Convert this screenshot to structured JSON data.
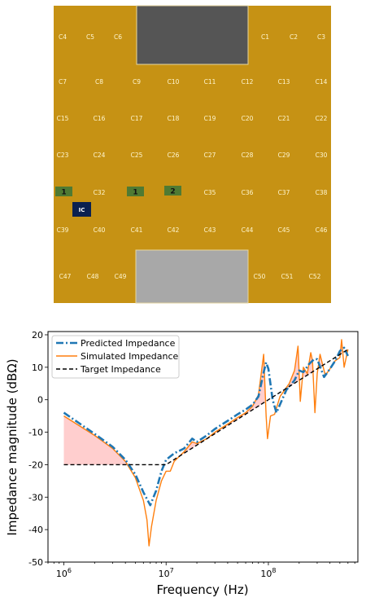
{
  "board": {
    "colors": {
      "board": "#c69214",
      "top_cutout": "#555555",
      "bottom_cutout": "#a8a8a8",
      "port": "#4f7a33",
      "ic": "#0b2150"
    },
    "capacitors": [
      {
        "label": "C4",
        "col": 0,
        "row": 0
      },
      {
        "label": "C5",
        "col": 1,
        "row": 0
      },
      {
        "label": "C6",
        "col": 2,
        "row": 0
      },
      {
        "label": "C1",
        "col": 7,
        "row": 0
      },
      {
        "label": "C2",
        "col": 8,
        "row": 0
      },
      {
        "label": "C3",
        "col": 9,
        "row": 0
      },
      {
        "label": "C7",
        "col": 0,
        "row": 1
      },
      {
        "label": "C8",
        "col": 1,
        "row": 1
      },
      {
        "label": "C9",
        "col": 2,
        "row": 1
      },
      {
        "label": "C10",
        "col": 3,
        "row": 1
      },
      {
        "label": "C11",
        "col": 4,
        "row": 1
      },
      {
        "label": "C12",
        "col": 5,
        "row": 1
      },
      {
        "label": "C13",
        "col": 6,
        "row": 1
      },
      {
        "label": "C14",
        "col": 7,
        "row": 1
      },
      {
        "label": "C15",
        "col": 0,
        "row": 2
      },
      {
        "label": "C16",
        "col": 1,
        "row": 2
      },
      {
        "label": "C17",
        "col": 2,
        "row": 2
      },
      {
        "label": "C18",
        "col": 3,
        "row": 2
      },
      {
        "label": "C19",
        "col": 4,
        "row": 2
      },
      {
        "label": "C20",
        "col": 5,
        "row": 2
      },
      {
        "label": "C21",
        "col": 6,
        "row": 2
      },
      {
        "label": "C22",
        "col": 7,
        "row": 2
      },
      {
        "label": "C23",
        "col": 0,
        "row": 3
      },
      {
        "label": "C24",
        "col": 1,
        "row": 3
      },
      {
        "label": "C25",
        "col": 2,
        "row": 3
      },
      {
        "label": "C26",
        "col": 3,
        "row": 3
      },
      {
        "label": "C27",
        "col": 4,
        "row": 3
      },
      {
        "label": "C28",
        "col": 5,
        "row": 3
      },
      {
        "label": "C29",
        "col": 6,
        "row": 3
      },
      {
        "label": "C30",
        "col": 7,
        "row": 3
      },
      {
        "label": "C32",
        "col": 1,
        "row": 4
      },
      {
        "label": "C35",
        "col": 4,
        "row": 4
      },
      {
        "label": "C36",
        "col": 5,
        "row": 4
      },
      {
        "label": "C37",
        "col": 6,
        "row": 4
      },
      {
        "label": "C38",
        "col": 7,
        "row": 4
      },
      {
        "label": "C39",
        "col": 0,
        "row": 5
      },
      {
        "label": "C40",
        "col": 1,
        "row": 5
      },
      {
        "label": "C41",
        "col": 2,
        "row": 5
      },
      {
        "label": "C42",
        "col": 3,
        "row": 5
      },
      {
        "label": "C43",
        "col": 4,
        "row": 5
      },
      {
        "label": "C44",
        "col": 5,
        "row": 5
      },
      {
        "label": "C45",
        "col": 6,
        "row": 5
      },
      {
        "label": "C46",
        "col": 7,
        "row": 5
      },
      {
        "label": "C47",
        "col": 0,
        "row": 6
      },
      {
        "label": "C48",
        "col": 1,
        "row": 6
      },
      {
        "label": "C49",
        "col": 2,
        "row": 6
      },
      {
        "label": "C50",
        "col": 7,
        "row": 6
      },
      {
        "label": "C51",
        "col": 8,
        "row": 6
      },
      {
        "label": "C52",
        "col": 9,
        "row": 6
      }
    ],
    "ports": [
      "1",
      "1",
      "2"
    ],
    "ic_label": "IC"
  },
  "chart_data": {
    "type": "line",
    "xlabel": "Frequency (Hz)",
    "ylabel": "Impedance magnitude (dBΩ)",
    "xscale": "log",
    "xlim": [
      700000,
      750000000
    ],
    "ylim": [
      -50,
      21
    ],
    "x_ticks": [
      {
        "value": 1000000,
        "base": "10",
        "exp": "6"
      },
      {
        "value": 10000000,
        "base": "10",
        "exp": "7"
      },
      {
        "value": 100000000,
        "base": "10",
        "exp": "8"
      }
    ],
    "y_ticks": [
      -50,
      -40,
      -30,
      -20,
      -10,
      0,
      10,
      20
    ],
    "legend_position": "top-left",
    "shaded_region": "between target and simulated where simulated exceeds target",
    "series": [
      {
        "name": "Predicted Impedance",
        "style": "dashdot",
        "color": "#1f77b4",
        "points": [
          [
            1000000,
            -4
          ],
          [
            2000000,
            -10.5
          ],
          [
            3000000,
            -14.5
          ],
          [
            4000000,
            -18.5
          ],
          [
            5000000,
            -23
          ],
          [
            6000000,
            -28.5
          ],
          [
            7000000,
            -32.5
          ],
          [
            8000000,
            -28
          ],
          [
            9000000,
            -22
          ],
          [
            10000000,
            -18.5
          ],
          [
            12000000,
            -16.5
          ],
          [
            15000000,
            -15
          ],
          [
            18000000,
            -12
          ],
          [
            20000000,
            -13
          ],
          [
            25000000,
            -11
          ],
          [
            30000000,
            -9
          ],
          [
            40000000,
            -6.5
          ],
          [
            50000000,
            -4.5
          ],
          [
            60000000,
            -3
          ],
          [
            70000000,
            -1.5
          ],
          [
            80000000,
            1
          ],
          [
            90000000,
            8.5
          ],
          [
            95000000,
            11.5
          ],
          [
            100000000,
            9.5
          ],
          [
            110000000,
            0
          ],
          [
            120000000,
            -4
          ],
          [
            150000000,
            3
          ],
          [
            180000000,
            6
          ],
          [
            200000000,
            9
          ],
          [
            220000000,
            8.5
          ],
          [
            250000000,
            11
          ],
          [
            280000000,
            12.5
          ],
          [
            300000000,
            12.5
          ],
          [
            350000000,
            7
          ],
          [
            400000000,
            9.5
          ],
          [
            450000000,
            12
          ],
          [
            500000000,
            15
          ],
          [
            550000000,
            16
          ],
          [
            600000000,
            13.5
          ]
        ]
      },
      {
        "name": "Simulated Impedance",
        "style": "solid",
        "color": "#ff7f0e",
        "points": [
          [
            1000000,
            -5
          ],
          [
            2000000,
            -11
          ],
          [
            3000000,
            -15
          ],
          [
            4000000,
            -19
          ],
          [
            5000000,
            -24
          ],
          [
            6000000,
            -31
          ],
          [
            6500000,
            -37
          ],
          [
            6800000,
            -45
          ],
          [
            7200000,
            -39
          ],
          [
            8000000,
            -31
          ],
          [
            9000000,
            -25
          ],
          [
            10000000,
            -22
          ],
          [
            11000000,
            -22
          ],
          [
            12000000,
            -19
          ],
          [
            15000000,
            -16
          ],
          [
            18000000,
            -13
          ],
          [
            20000000,
            -13.5
          ],
          [
            25000000,
            -12
          ],
          [
            30000000,
            -10
          ],
          [
            40000000,
            -7.5
          ],
          [
            50000000,
            -5.5
          ],
          [
            60000000,
            -4
          ],
          [
            70000000,
            -2
          ],
          [
            80000000,
            1.5
          ],
          [
            90000000,
            14
          ],
          [
            95000000,
            -5
          ],
          [
            98000000,
            -12
          ],
          [
            105000000,
            -5
          ],
          [
            115000000,
            -4.5
          ],
          [
            130000000,
            1
          ],
          [
            160000000,
            5
          ],
          [
            180000000,
            9
          ],
          [
            195000000,
            16.5
          ],
          [
            205000000,
            -0.5
          ],
          [
            220000000,
            10
          ],
          [
            240000000,
            8
          ],
          [
            260000000,
            14.5
          ],
          [
            270000000,
            12
          ],
          [
            285000000,
            -4
          ],
          [
            300000000,
            8
          ],
          [
            320000000,
            14
          ],
          [
            360000000,
            7.5
          ],
          [
            400000000,
            9.5
          ],
          [
            450000000,
            12
          ],
          [
            500000000,
            13
          ],
          [
            520000000,
            18.5
          ],
          [
            550000000,
            10
          ],
          [
            600000000,
            15.5
          ]
        ]
      },
      {
        "name": "Target Impedance",
        "style": "dashed",
        "color": "#000000",
        "points": [
          [
            1000000,
            -20
          ],
          [
            4000000,
            -20
          ],
          [
            10000000,
            -20
          ],
          [
            100000000,
            0
          ],
          [
            600000000,
            15.5
          ]
        ]
      }
    ]
  }
}
